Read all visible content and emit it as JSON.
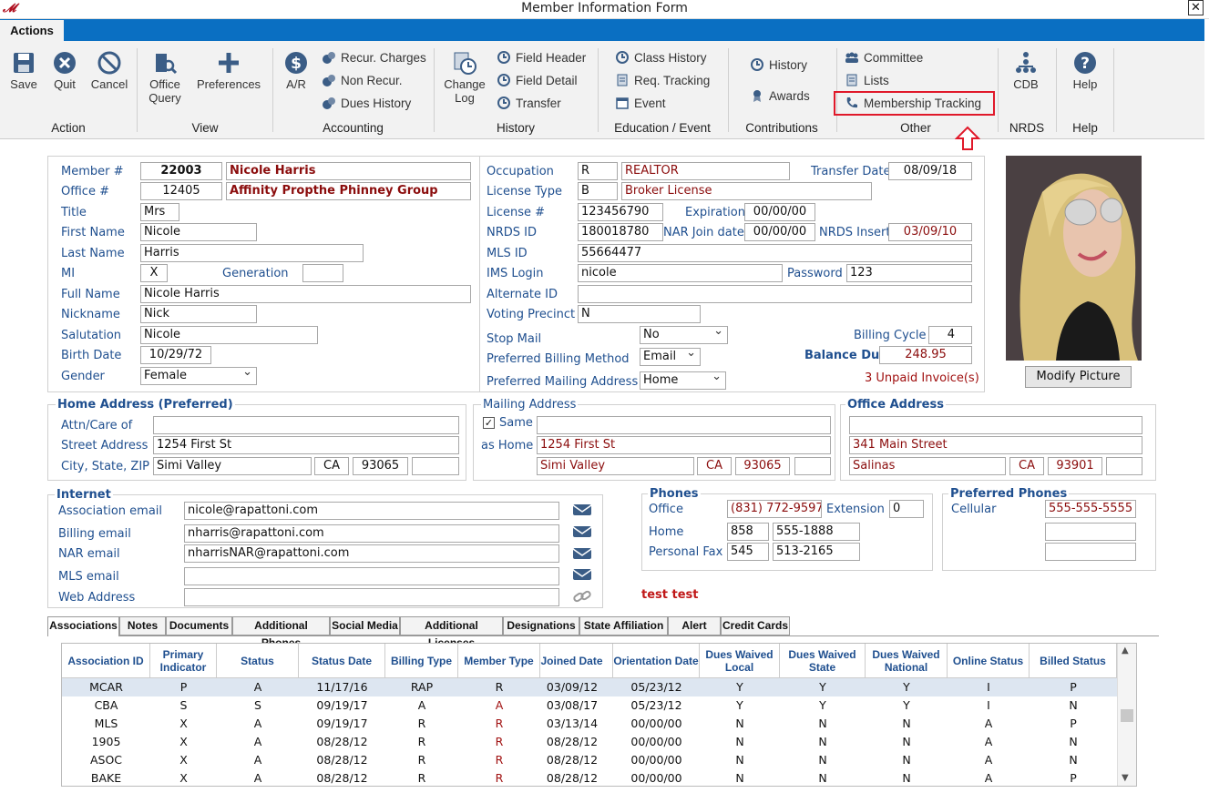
{
  "window": {
    "title": "Member Information Form",
    "close": "✕"
  },
  "ribbon": {
    "tab": "Actions",
    "action": {
      "save": "Save",
      "quit": "Quit",
      "cancel": "Cancel",
      "group": "Action"
    },
    "view": {
      "office_query_1": "Office",
      "office_query_2": "Query",
      "preferences": "Preferences",
      "group": "View"
    },
    "accounting": {
      "ar": "A/R",
      "recur": "Recur. Charges",
      "nonrecur": "Non Recur.",
      "dues": "Dues History",
      "group": "Accounting"
    },
    "history": {
      "change_1": "Change",
      "change_2": "Log",
      "field_header": "Field Header",
      "field_detail": "Field Detail",
      "transfer": "Transfer",
      "group": "History"
    },
    "education": {
      "class_history": "Class History",
      "req_tracking": "Req. Tracking",
      "event": "Event",
      "group": "Education / Event"
    },
    "contributions": {
      "history": "History",
      "awards": "Awards",
      "group": "Contributions"
    },
    "other": {
      "committee": "Committee",
      "lists": "Lists",
      "membership_tracking": "Membership Tracking",
      "group": "Other"
    },
    "nrds": {
      "cdb": "CDB",
      "group": "NRDS"
    },
    "help": {
      "help": "Help",
      "group": "Help"
    }
  },
  "member": {
    "labels": {
      "member_no": "Member #",
      "office_no": "Office #",
      "title": "Title",
      "first_name": "First  Name",
      "last_name": "Last Name",
      "mi": "MI",
      "generation": "Generation",
      "full_name": "Full Name",
      "nickname": "Nickname",
      "salutation": "Salutation",
      "birth_date": "Birth Date",
      "gender": "Gender"
    },
    "member_no": "22003",
    "member_name": "Nicole Harris",
    "office_no": "12405",
    "office_name": "Affinity Propthe Phinney Group",
    "title": "Mrs",
    "first_name": "Nicole",
    "last_name": "Harris",
    "mi": "X",
    "generation": "",
    "full_name": "Nicole Harris",
    "nickname": "Nick",
    "salutation": "Nicole",
    "birth_date": "10/29/72",
    "gender": "Female"
  },
  "license": {
    "labels": {
      "occupation": "Occupation",
      "license_type": "License Type",
      "license_no": "License #",
      "expiration": "Expiration",
      "nrds_id": "NRDS ID",
      "nar_join": "NAR Join date",
      "nrds_insert": "NRDS Insert",
      "mls_id": "MLS ID",
      "ims_login": "IMS Login",
      "password": "Password",
      "alternate_id": "Alternate ID",
      "voting": "Voting Precinct",
      "stop_mail": "Stop Mail",
      "billing_method": "Preferred Billing Method",
      "mailing_address": "Preferred Mailing Address",
      "transfer_date": "Transfer Date",
      "billing_cycle": "Billing Cycle",
      "balance_due": "Balance Due"
    },
    "occupation_code": "R",
    "occupation": "REALTOR",
    "license_type_code": "B",
    "license_type": "Broker License",
    "license_no": "123456790",
    "expiration": "00/00/00",
    "nrds_id": "180018780",
    "nar_join": "00/00/00",
    "nrds_insert": "03/09/10",
    "mls_id": "55664477",
    "ims_login": "nicole",
    "password": "123",
    "alternate_id": "",
    "voting": "N",
    "stop_mail": "No",
    "billing_method": "Email",
    "mailing_address": "Home",
    "transfer_date": "08/09/18",
    "billing_cycle": "4",
    "balance_due": "248.95",
    "unpaid": "3 Unpaid Invoice(s)"
  },
  "photo": {
    "button": "Modify Picture"
  },
  "home": {
    "heading": "Home Address  (Preferred)",
    "attn_label": "Attn/Care of",
    "street_label": "Street Address",
    "city_label": "City, State, ZIP",
    "attn": "",
    "street": "1254 First St",
    "city": "Simi Valley",
    "state": "CA",
    "zip": "93065",
    "zip4": ""
  },
  "mailing": {
    "heading": "Mailing Address",
    "same": "Same",
    "as_home": "as Home",
    "line1": "",
    "street": "1254 First St",
    "city": "Simi Valley",
    "state": "CA",
    "zip": "93065"
  },
  "office": {
    "heading": "Office Address",
    "line1": "",
    "street": "341 Main Street",
    "city": "Salinas",
    "state": "CA",
    "zip": "93901"
  },
  "internet": {
    "heading": "Internet",
    "assoc_label": "Association email",
    "billing_label": "Billing email",
    "nar_label": "NAR email",
    "mls_label": "MLS email",
    "web_label": "Web Address",
    "assoc": "nicole@rapattoni.com",
    "billing": "nharris@rapattoni.com",
    "nar": "nharrisNAR@rapattoni.com",
    "mls": "",
    "web": ""
  },
  "phones": {
    "heading": "Phones",
    "office_label": "Office",
    "ext_label": "Extension",
    "home_label": "Home",
    "fax_label": "Personal Fax",
    "office": "(831) 772-9597",
    "ext": "0",
    "home_area": "858",
    "home": "555-1888",
    "fax_area": "545",
    "fax": "513-2165"
  },
  "preferred": {
    "heading": "Preferred Phones",
    "cell_label": "Cellular",
    "cell": "555-555-5555"
  },
  "note": "test test",
  "tabs": [
    "Associations",
    "Notes",
    "Documents",
    "Additional Phones",
    "Social Media",
    "Additional Licenses",
    "Designations",
    "State Affiliation",
    "Alert",
    "Credit Cards"
  ],
  "grid": {
    "headers": [
      "Association ID",
      "Primary Indicator",
      "Status",
      "Status Date",
      "Billing Type",
      "Member Type",
      "Joined Date",
      "Orientation Date",
      "Dues Waived Local",
      "Dues Waived State",
      "Dues Waived National",
      "Online Status",
      "Billed Status"
    ],
    "rows": [
      [
        "MCAR",
        "P",
        "A",
        "11/17/16",
        "RAP",
        "R",
        "03/09/12",
        "05/23/12",
        "Y",
        "Y",
        "Y",
        "I",
        "P"
      ],
      [
        "CBA",
        "S",
        "S",
        "09/19/17",
        "A",
        "A",
        "03/08/17",
        "05/23/12",
        "Y",
        "Y",
        "Y",
        "I",
        "N"
      ],
      [
        "MLS",
        "X",
        "A",
        "09/19/17",
        "R",
        "R",
        "03/13/14",
        "00/00/00",
        "N",
        "N",
        "N",
        "A",
        "P"
      ],
      [
        "1905",
        "X",
        "A",
        "08/28/12",
        "R",
        "R",
        "08/28/12",
        "00/00/00",
        "N",
        "N",
        "N",
        "A",
        "N"
      ],
      [
        "ASOC",
        "X",
        "A",
        "08/28/12",
        "R",
        "R",
        "08/28/12",
        "00/00/00",
        "N",
        "N",
        "N",
        "A",
        "N"
      ],
      [
        "BAKE",
        "X",
        "A",
        "08/28/12",
        "R",
        "R",
        "08/28/12",
        "00/00/00",
        "N",
        "N",
        "N",
        "A",
        "P"
      ]
    ]
  },
  "colors": {
    "ribbon_bar": "#0a6fc2",
    "highlight": "#e0192a",
    "label": "#1f4f8f",
    "dark_red": "#8b0d0d"
  }
}
